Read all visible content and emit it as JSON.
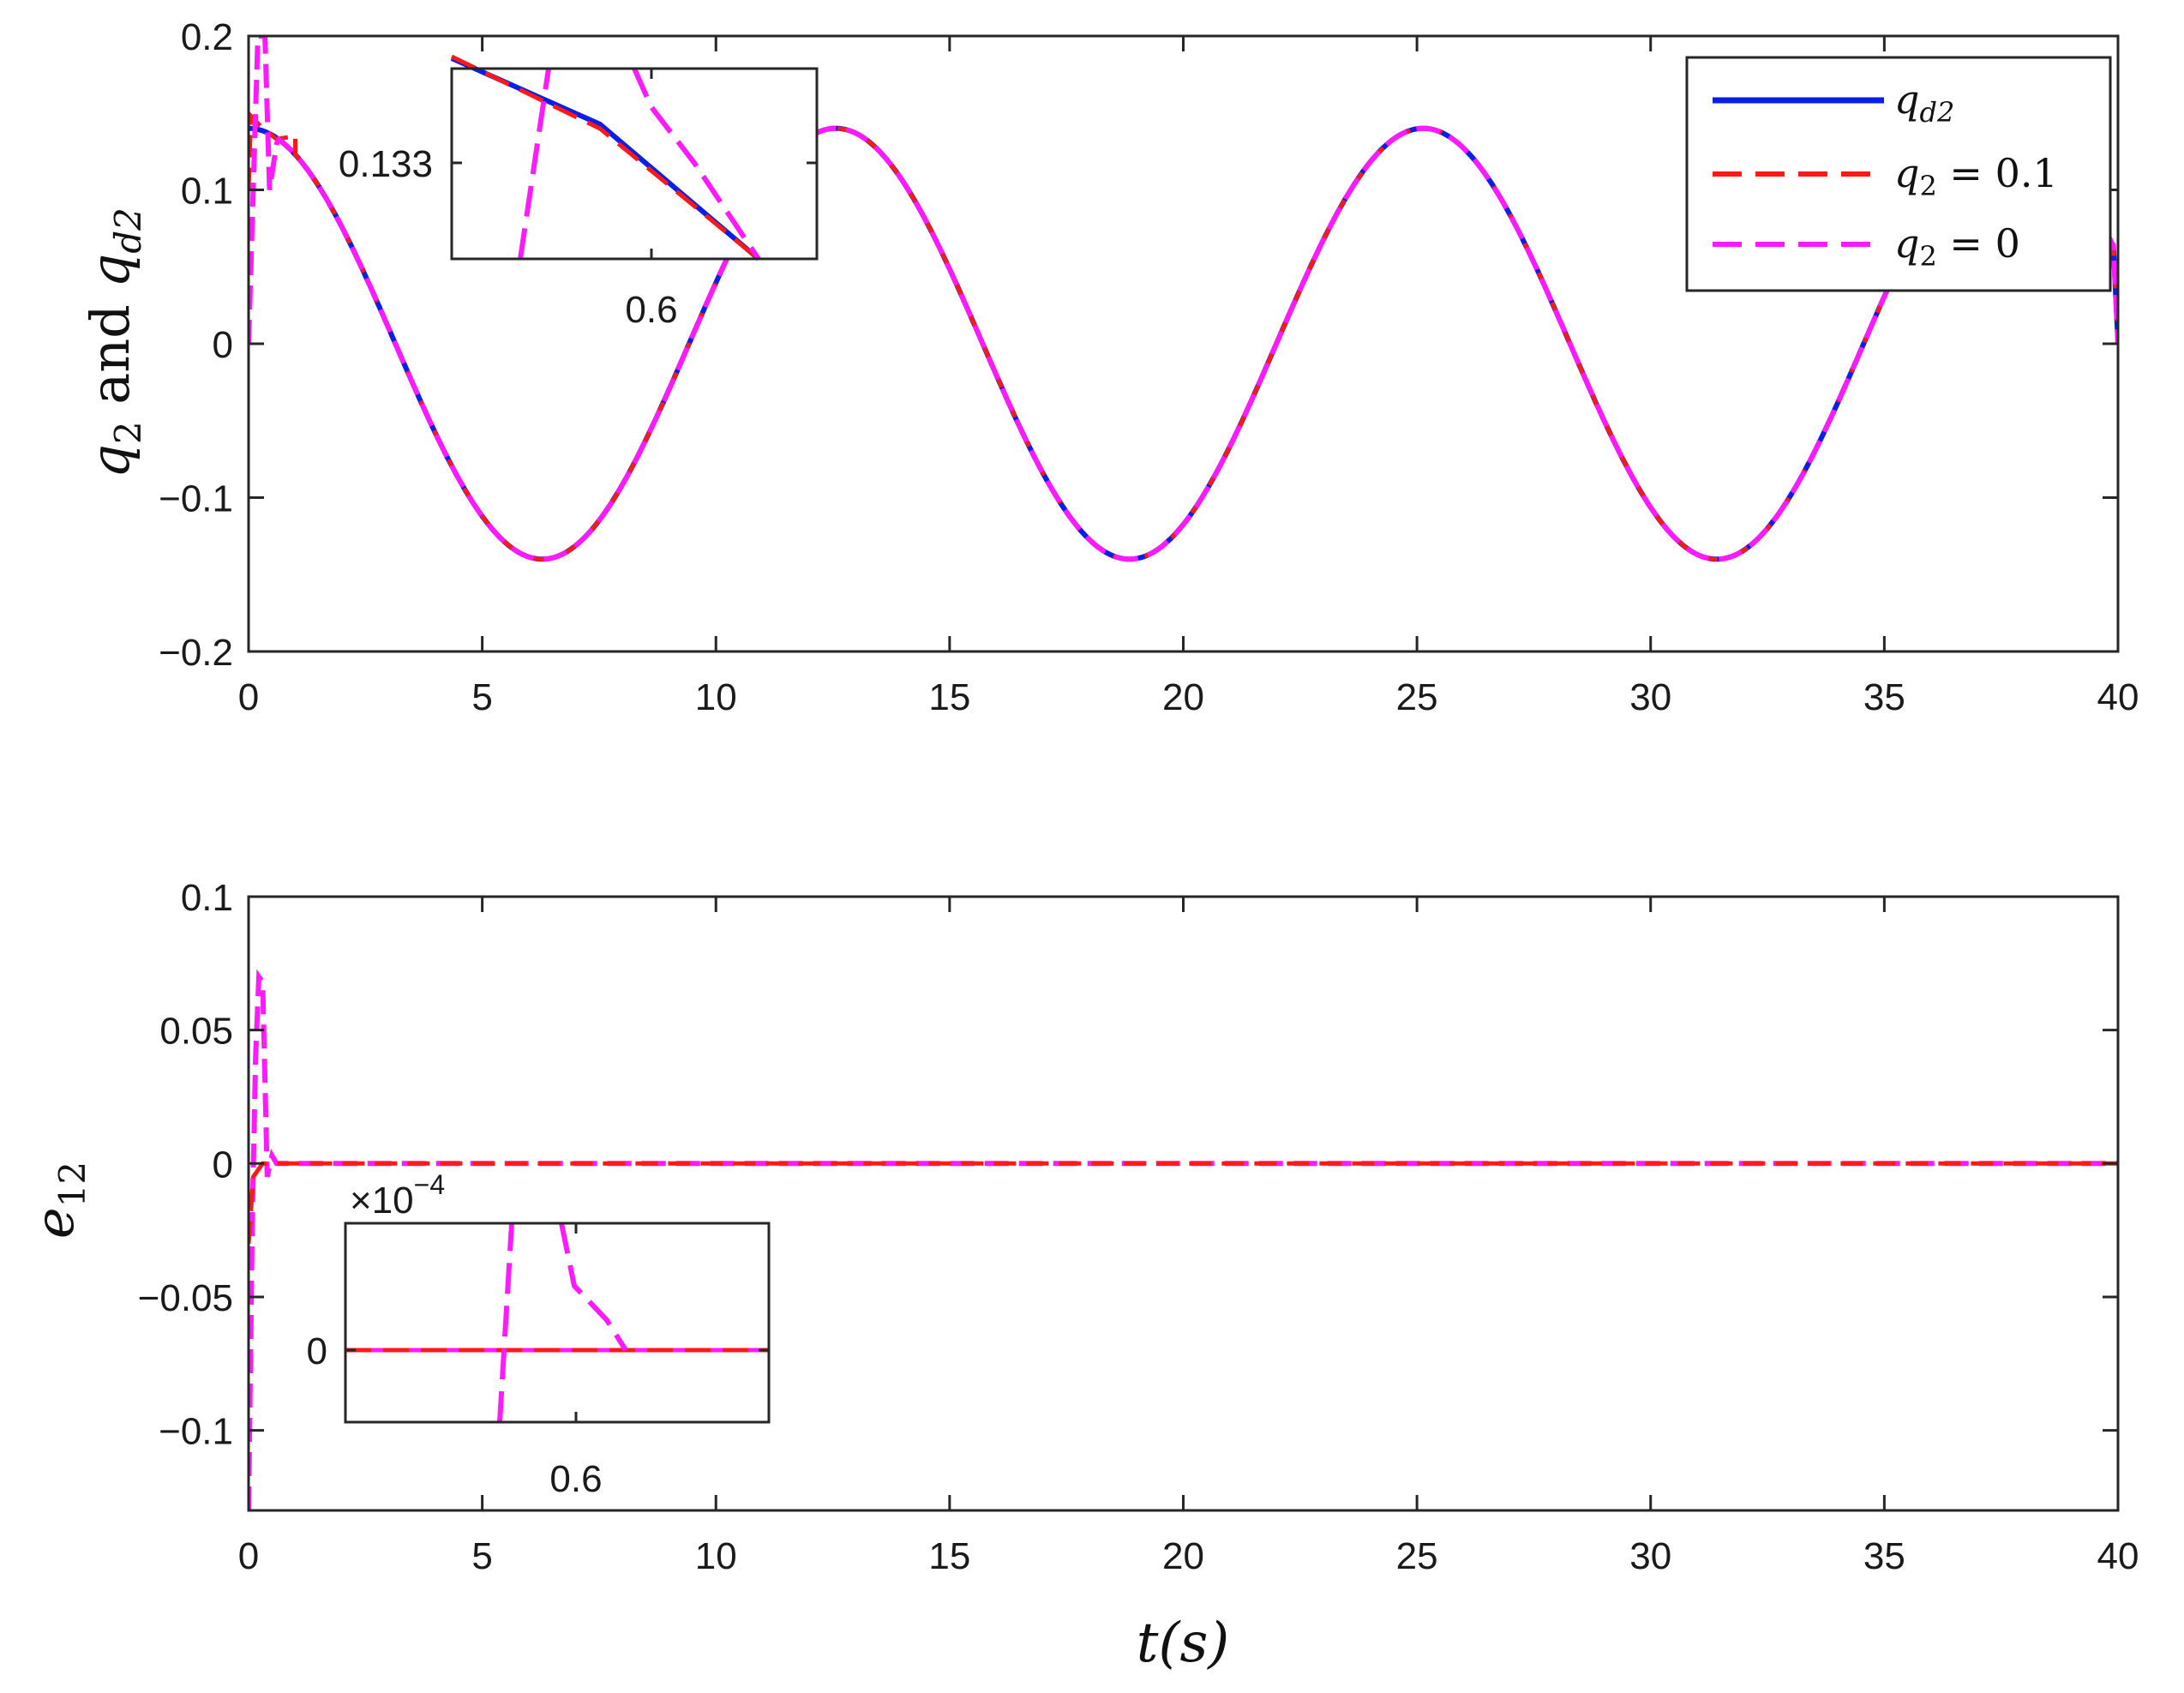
{
  "chart_data": [
    {
      "type": "line",
      "xlim": [
        0,
        40
      ],
      "ylim": [
        -0.2,
        0.2
      ],
      "xticks": [
        0,
        5,
        10,
        15,
        20,
        25,
        30,
        35,
        40
      ],
      "yticks": [
        -0.2,
        -0.1,
        0,
        0.1,
        0.2
      ],
      "xtick_labels": [
        "0",
        "5",
        "10",
        "15",
        "20",
        "25",
        "30",
        "35",
        "40"
      ],
      "ytick_labels": [
        "−0.2",
        "−0.1",
        "0",
        "0.1",
        "0.2"
      ],
      "ylabel": {
        "pre": "q",
        "pre_sub": "2",
        "mid": " and ",
        "post": "q",
        "post_sub": "d2"
      },
      "legend": {
        "position": "top-right",
        "entries": [
          {
            "name": "q",
            "sub": "d2",
            "rest": ""
          },
          {
            "name": "q",
            "sub": "2",
            "rest": " = 0.1"
          },
          {
            "name": "q",
            "sub": "2",
            "rest": " = 0"
          }
        ]
      },
      "grid": false,
      "series": [
        {
          "style": "solid",
          "color": "#0a1ee6",
          "formula": "qd2(t) = 0.14 cos(0.5 t)",
          "amplitude": 0.14,
          "omega": 0.5
        },
        {
          "style": "dashed",
          "color": "#ff1a1a",
          "initial_value": 0.1,
          "transient_points": [
            [
              0,
              0.1
            ],
            [
              0.05,
              0.148
            ],
            [
              0.3,
              0.14
            ],
            [
              0.6,
              0.133
            ],
            [
              1.0,
              0.135
            ]
          ]
        },
        {
          "style": "dashed",
          "color": "#ff1aff",
          "initial_value": 0,
          "transient_points": [
            [
              0,
              0
            ],
            [
              0.12,
              0.12
            ],
            [
              0.2,
              0.2
            ],
            [
              0.35,
              0.2
            ],
            [
              0.45,
              0.1
            ],
            [
              0.6,
              0.13
            ]
          ]
        }
      ],
      "end_points": [
        [
          39.9,
          0.065
        ],
        [
          40,
          0
        ]
      ],
      "inset": {
        "position": "top-left",
        "xtick_label": "0.6",
        "ytick_label": "0.133"
      }
    },
    {
      "type": "line",
      "xlim": [
        0,
        40
      ],
      "ylim": [
        -0.13,
        0.1
      ],
      "xticks": [
        0,
        5,
        10,
        15,
        20,
        25,
        30,
        35,
        40
      ],
      "yticks": [
        -0.1,
        -0.05,
        0,
        0.05,
        0.1
      ],
      "xtick_labels": [
        "0",
        "5",
        "10",
        "15",
        "20",
        "25",
        "30",
        "35",
        "40"
      ],
      "ytick_labels": [
        "−0.1",
        "−0.05",
        "0",
        "0.05",
        "0.1"
      ],
      "ylabel": {
        "pre": "e",
        "pre_sub": "12"
      },
      "xlabel": {
        "text": "t(s)"
      },
      "grid": false,
      "series": [
        {
          "style": "dashed",
          "color": "#ff1a1a",
          "points": [
            [
              0,
              -0.03
            ],
            [
              0.1,
              -0.005
            ],
            [
              0.3,
              0
            ],
            [
              40,
              0
            ]
          ]
        },
        {
          "style": "dashed",
          "color": "#ff1aff",
          "points": [
            [
              0,
              -0.13
            ],
            [
              0.08,
              -0.02
            ],
            [
              0.15,
              0.04
            ],
            [
              0.22,
              0.07
            ],
            [
              0.3,
              0.068
            ],
            [
              0.4,
              -0.005
            ],
            [
              0.5,
              0.003
            ],
            [
              0.6,
              0
            ],
            [
              40,
              0
            ]
          ]
        }
      ],
      "inset": {
        "position": "bottom-left",
        "xtick_label": "0.6",
        "ytick_label": "0",
        "multiplier_base": "×10",
        "multiplier_exp": "−4"
      }
    }
  ]
}
